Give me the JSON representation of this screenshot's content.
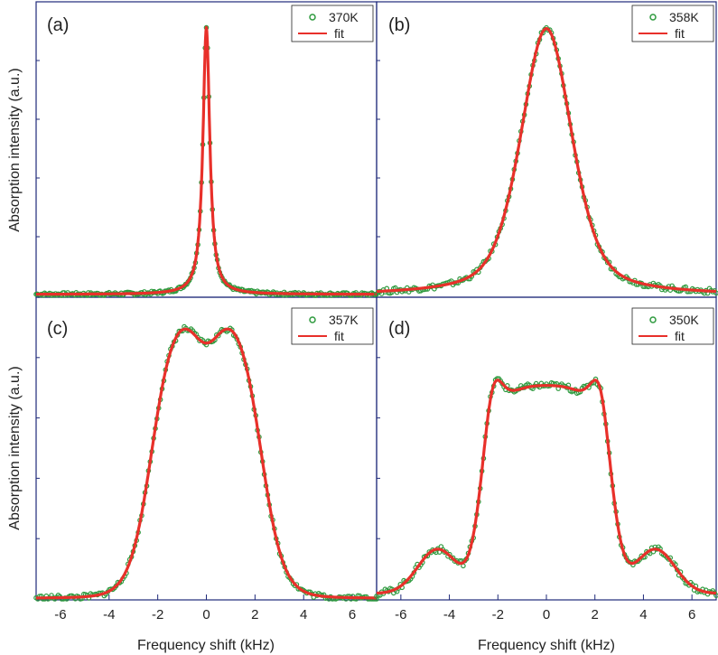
{
  "colors": {
    "data": "#2e9a3e",
    "fit": "#e8302a",
    "frame": "#1f2a7a"
  },
  "chart_data": [
    {
      "type": "line",
      "panel": "(a)",
      "temperature": "370K",
      "xlabel": "",
      "ylabel": "Absorption intensity (a.u.)",
      "xlim": [
        -7,
        7
      ],
      "ylim": [
        0,
        1.08
      ],
      "legend": [
        "370K",
        "fit"
      ],
      "legend_position": "top-right",
      "shape": {
        "kind": "sharp",
        "gamma": 0.17
      },
      "series": [
        {
          "name": "370K",
          "style": "markers",
          "noise": 0.006
        },
        {
          "name": "fit",
          "style": "line"
        }
      ]
    },
    {
      "type": "line",
      "panel": "(b)",
      "temperature": "358K",
      "xlabel": "",
      "ylabel": "",
      "xlim": [
        -7,
        7
      ],
      "ylim": [
        0,
        1.08
      ],
      "legend": [
        "358K",
        "fit"
      ],
      "legend_position": "top-right",
      "shape": {
        "kind": "single",
        "sigma": 1.05,
        "gamma": 1.3
      },
      "series": [
        {
          "name": "358K",
          "style": "markers",
          "noise": 0.01
        },
        {
          "name": "fit",
          "style": "line"
        }
      ]
    },
    {
      "type": "line",
      "panel": "(c)",
      "temperature": "357K",
      "xlabel": "Frequency shift (kHz)",
      "ylabel": "Absorption intensity (a.u.)",
      "xlim": [
        -7,
        7
      ],
      "ylim": [
        0,
        1.08
      ],
      "xticks": [
        -6,
        -4,
        -2,
        0,
        2,
        4,
        6
      ],
      "legend": [
        "357K",
        "fit"
      ],
      "legend_position": "top-right",
      "shape": {
        "kind": "plateau",
        "peak": 1.05,
        "dip": 0.93,
        "edge": 2.25,
        "width": 0.45
      },
      "series": [
        {
          "name": "357K",
          "style": "markers",
          "noise": 0.01
        },
        {
          "name": "fit",
          "style": "line"
        }
      ]
    },
    {
      "type": "line",
      "panel": "(d)",
      "temperature": "350K",
      "xlabel": "Frequency shift (kHz)",
      "ylabel": "",
      "xlim": [
        -7,
        7
      ],
      "ylim": [
        0,
        1.08
      ],
      "xticks": [
        -6,
        -4,
        -2,
        0,
        2,
        4,
        6
      ],
      "legend": [
        "350K",
        "fit"
      ],
      "legend_position": "top-right",
      "shape": {
        "kind": "double",
        "peak": 1.0,
        "center": 0.76,
        "peakpos": 2.35,
        "shoulder": 0.2
      },
      "series": [
        {
          "name": "350K",
          "style": "markers",
          "noise": 0.012
        },
        {
          "name": "fit",
          "style": "line"
        }
      ]
    }
  ]
}
